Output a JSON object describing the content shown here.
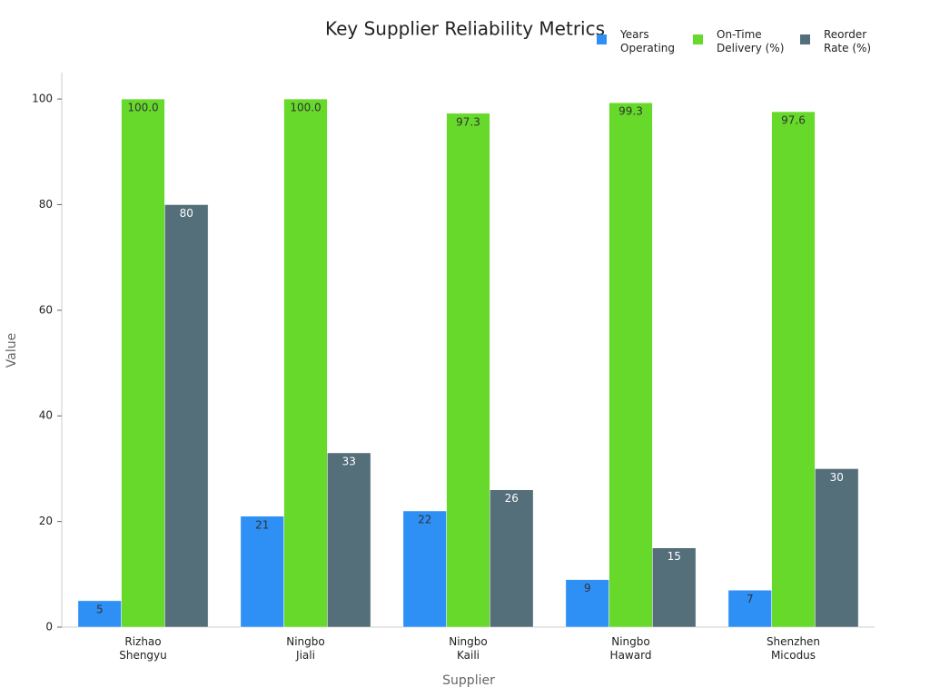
{
  "chart_data": {
    "type": "bar",
    "title": "Key Supplier Reliability Metrics",
    "x_label": "Supplier",
    "y_label": "Value",
    "categories": [
      "Rizhao\nShengyu",
      "Ningbo\nJiali",
      "Ningbo\nKaili",
      "Ningbo\nHaward",
      "Shenzhen\nMicodus"
    ],
    "series": [
      {
        "name": "Years\nOperating",
        "color": "#2e8ff5",
        "values": [
          5,
          21,
          22,
          9,
          7
        ]
      },
      {
        "name": "On-Time\nDelivery (%)",
        "color": "#66d92a",
        "values": [
          100,
          100,
          97.3,
          99.3,
          97.6
        ],
        "value_labels": [
          "100.0",
          "100.0",
          "97.3",
          "99.3",
          "97.6"
        ]
      },
      {
        "name": "Reorder\nRate (%)",
        "color": "#546e7a",
        "values": [
          80,
          33,
          26,
          15,
          30
        ]
      }
    ],
    "ylim": [
      0,
      105
    ],
    "yticks": [
      0,
      20,
      40,
      60,
      80,
      100
    ],
    "grid": false,
    "legend": "top-right"
  }
}
